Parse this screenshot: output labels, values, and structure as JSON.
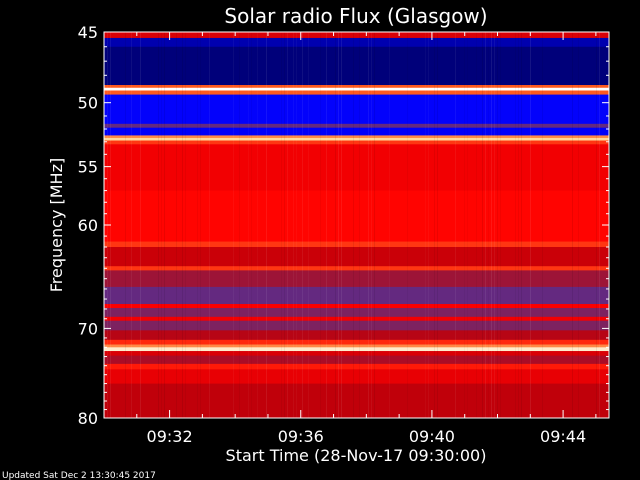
{
  "chart_data": {
    "type": "heatmap",
    "title": "Solar radio Flux (Glasgow)",
    "xlabel": "Start Time (28-Nov-17 09:30:00)",
    "ylabel": "Frequency [MHz]",
    "ylim": [
      45,
      80
    ],
    "yscale": "log",
    "yticks": [
      45,
      50,
      55,
      60,
      70,
      80
    ],
    "ytick_labels": [
      "45",
      "50",
      "55",
      "60",
      "70",
      "80"
    ],
    "xlim_minutes": [
      0,
      15.4
    ],
    "xticks_minutes": [
      2,
      6,
      10,
      14
    ],
    "xtick_labels": [
      "09:32",
      "09:36",
      "09:40",
      "09:44"
    ],
    "colormap": [
      "#00007a",
      "#0000ff",
      "#4a2fa0",
      "#8a1f50",
      "#c0000a",
      "#ff0000",
      "#ff5a1e",
      "#ffd080",
      "#ffffff"
    ],
    "bands": [
      {
        "from": 45.0,
        "to": 45.4,
        "level": 0.55
      },
      {
        "from": 45.4,
        "to": 46.0,
        "level": 0.05
      },
      {
        "from": 46.0,
        "to": 48.7,
        "level": 0.0
      },
      {
        "from": 48.7,
        "to": 48.9,
        "level": 0.75
      },
      {
        "from": 48.9,
        "to": 49.1,
        "level": 1.0
      },
      {
        "from": 49.1,
        "to": 49.4,
        "level": 0.75
      },
      {
        "from": 49.4,
        "to": 51.6,
        "level": 0.13
      },
      {
        "from": 51.6,
        "to": 51.9,
        "level": 0.3
      },
      {
        "from": 51.9,
        "to": 52.5,
        "level": 0.12
      },
      {
        "from": 52.5,
        "to": 52.7,
        "level": 0.8
      },
      {
        "from": 52.7,
        "to": 52.9,
        "level": 0.9
      },
      {
        "from": 52.9,
        "to": 53.2,
        "level": 0.7
      },
      {
        "from": 53.2,
        "to": 57.0,
        "level": 0.6
      },
      {
        "from": 57.0,
        "to": 61.5,
        "level": 0.63
      },
      {
        "from": 61.5,
        "to": 62.0,
        "level": 0.7
      },
      {
        "from": 62.0,
        "to": 63.8,
        "level": 0.52
      },
      {
        "from": 63.8,
        "to": 64.2,
        "level": 0.7
      },
      {
        "from": 64.2,
        "to": 65.8,
        "level": 0.42
      },
      {
        "from": 65.8,
        "to": 67.5,
        "level": 0.3
      },
      {
        "from": 67.5,
        "to": 67.9,
        "level": 0.62
      },
      {
        "from": 67.9,
        "to": 68.8,
        "level": 0.35
      },
      {
        "from": 68.8,
        "to": 69.2,
        "level": 0.6
      },
      {
        "from": 69.2,
        "to": 70.2,
        "level": 0.35
      },
      {
        "from": 70.2,
        "to": 71.2,
        "level": 0.48
      },
      {
        "from": 71.2,
        "to": 71.7,
        "level": 0.68
      },
      {
        "from": 71.7,
        "to": 72.0,
        "level": 0.8
      },
      {
        "from": 72.0,
        "to": 72.4,
        "level": 0.95
      },
      {
        "from": 72.4,
        "to": 72.9,
        "level": 0.55
      },
      {
        "from": 72.9,
        "to": 73.8,
        "level": 0.45
      },
      {
        "from": 73.8,
        "to": 74.4,
        "level": 0.66
      },
      {
        "from": 74.4,
        "to": 76.0,
        "level": 0.58
      },
      {
        "from": 76.0,
        "to": 80.0,
        "level": 0.5
      }
    ]
  },
  "footer": {
    "updated": "Updated Sat Dec  2 13:30:45 2017"
  }
}
